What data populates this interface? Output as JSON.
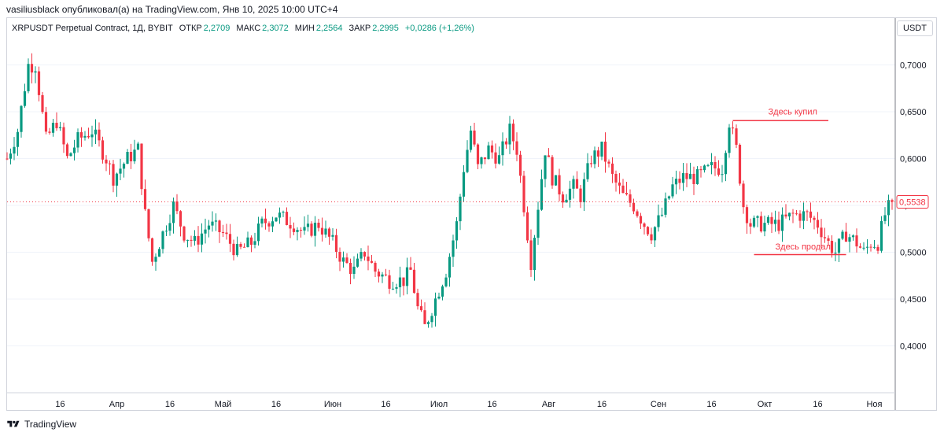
{
  "header": {
    "publication": "vasiliusblack опубликовал(а) на TradingView.com, Янв 10, 2025 10:00 UTC+4"
  },
  "legend": {
    "symbol": "XRPUSDT Perpetual Contract, 1Д, BYBIT",
    "open_label": "ОТКР",
    "open_value": "2,2709",
    "high_label": "МАКС",
    "high_value": "2,3072",
    "low_label": "МИН",
    "low_value": "2,2564",
    "close_label": "ЗАКР",
    "close_value": "2,2995",
    "change": "+0,0286 (+1,26%)"
  },
  "currency_button": "USDT",
  "footer": {
    "brand": "TradingView"
  },
  "colors": {
    "up": "#089981",
    "down": "#f23645",
    "annotation": "#f23645",
    "axis_text": "#131722",
    "grid": "#f0f3fa"
  },
  "chart_data": {
    "type": "candlestick",
    "y_axis": {
      "min": 0.35,
      "max": 0.75,
      "ticks": [
        "0,7000",
        "0,6500",
        "0,6000",
        "0,5500",
        "0,5000",
        "0,4500",
        "0,4000"
      ],
      "tick_values": [
        0.7,
        0.65,
        0.6,
        0.55,
        0.5,
        0.45,
        0.4
      ]
    },
    "x_axis": {
      "ticks": [
        "16",
        "Апр",
        "16",
        "Май",
        "16",
        "Июн",
        "16",
        "Июл",
        "16",
        "Авг",
        "16",
        "Сен",
        "16",
        "Окт",
        "16",
        "Ноя"
      ],
      "tick_days": [
        15,
        31,
        46,
        61,
        76,
        92,
        107,
        122,
        137,
        153,
        168,
        184,
        199,
        214,
        229,
        245
      ]
    },
    "last_price_label": "0,5538",
    "last_price": 0.5538,
    "days_span": [
      0,
      256
    ],
    "key_points": [
      {
        "day": 0,
        "price": 0.6
      },
      {
        "day": 3,
        "price": 0.63
      },
      {
        "day": 6,
        "price": 0.7
      },
      {
        "day": 8,
        "price": 0.7
      },
      {
        "day": 11,
        "price": 0.62
      },
      {
        "day": 14,
        "price": 0.64
      },
      {
        "day": 17,
        "price": 0.6
      },
      {
        "day": 20,
        "price": 0.62
      },
      {
        "day": 24,
        "price": 0.63
      },
      {
        "day": 28,
        "price": 0.6
      },
      {
        "day": 30,
        "price": 0.58
      },
      {
        "day": 34,
        "price": 0.6
      },
      {
        "day": 37,
        "price": 0.61
      },
      {
        "day": 39,
        "price": 0.54
      },
      {
        "day": 41,
        "price": 0.49
      },
      {
        "day": 44,
        "price": 0.52
      },
      {
        "day": 47,
        "price": 0.55
      },
      {
        "day": 50,
        "price": 0.52
      },
      {
        "day": 53,
        "price": 0.51
      },
      {
        "day": 57,
        "price": 0.53
      },
      {
        "day": 61,
        "price": 0.52
      },
      {
        "day": 65,
        "price": 0.5
      },
      {
        "day": 69,
        "price": 0.51
      },
      {
        "day": 72,
        "price": 0.53
      },
      {
        "day": 76,
        "price": 0.54
      },
      {
        "day": 81,
        "price": 0.53
      },
      {
        "day": 84,
        "price": 0.52
      },
      {
        "day": 88,
        "price": 0.53
      },
      {
        "day": 92,
        "price": 0.51
      },
      {
        "day": 95,
        "price": 0.49
      },
      {
        "day": 98,
        "price": 0.48
      },
      {
        "day": 101,
        "price": 0.5
      },
      {
        "day": 104,
        "price": 0.48
      },
      {
        "day": 108,
        "price": 0.47
      },
      {
        "day": 112,
        "price": 0.47
      },
      {
        "day": 114,
        "price": 0.48
      },
      {
        "day": 116,
        "price": 0.44
      },
      {
        "day": 118,
        "price": 0.42
      },
      {
        "day": 121,
        "price": 0.45
      },
      {
        "day": 124,
        "price": 0.48
      },
      {
        "day": 127,
        "price": 0.53
      },
      {
        "day": 129,
        "price": 0.59
      },
      {
        "day": 131,
        "price": 0.63
      },
      {
        "day": 133,
        "price": 0.59
      },
      {
        "day": 136,
        "price": 0.61
      },
      {
        "day": 139,
        "price": 0.6
      },
      {
        "day": 142,
        "price": 0.63
      },
      {
        "day": 144,
        "price": 0.61
      },
      {
        "day": 146,
        "price": 0.55
      },
      {
        "day": 148,
        "price": 0.49
      },
      {
        "day": 150,
        "price": 0.55
      },
      {
        "day": 152,
        "price": 0.61
      },
      {
        "day": 154,
        "price": 0.58
      },
      {
        "day": 157,
        "price": 0.56
      },
      {
        "day": 160,
        "price": 0.57
      },
      {
        "day": 162,
        "price": 0.56
      },
      {
        "day": 165,
        "price": 0.6
      },
      {
        "day": 168,
        "price": 0.61
      },
      {
        "day": 171,
        "price": 0.58
      },
      {
        "day": 174,
        "price": 0.56
      },
      {
        "day": 177,
        "price": 0.55
      },
      {
        "day": 180,
        "price": 0.53
      },
      {
        "day": 182,
        "price": 0.52
      },
      {
        "day": 185,
        "price": 0.54
      },
      {
        "day": 188,
        "price": 0.57
      },
      {
        "day": 191,
        "price": 0.58
      },
      {
        "day": 195,
        "price": 0.58
      },
      {
        "day": 199,
        "price": 0.59
      },
      {
        "day": 202,
        "price": 0.59
      },
      {
        "day": 204,
        "price": 0.64
      },
      {
        "day": 206,
        "price": 0.61
      },
      {
        "day": 208,
        "price": 0.55
      },
      {
        "day": 210,
        "price": 0.53
      },
      {
        "day": 214,
        "price": 0.53
      },
      {
        "day": 218,
        "price": 0.53
      },
      {
        "day": 222,
        "price": 0.54
      },
      {
        "day": 226,
        "price": 0.54
      },
      {
        "day": 229,
        "price": 0.53
      },
      {
        "day": 232,
        "price": 0.51
      },
      {
        "day": 234,
        "price": 0.5
      },
      {
        "day": 237,
        "price": 0.52
      },
      {
        "day": 240,
        "price": 0.51
      },
      {
        "day": 242,
        "price": 0.5
      },
      {
        "day": 244,
        "price": 0.51
      },
      {
        "day": 246,
        "price": 0.51
      },
      {
        "day": 248,
        "price": 0.54
      },
      {
        "day": 250,
        "price": 0.5538
      }
    ],
    "annotations": [
      {
        "text": "Здесь купил",
        "day_start": 205,
        "day_end": 232,
        "price": 0.6405,
        "label_day": 215,
        "label_price": 0.647
      },
      {
        "text": "Здесь продал",
        "day_start": 211,
        "day_end": 237,
        "price": 0.4975,
        "label_day": 217,
        "label_price": 0.503
      }
    ]
  }
}
